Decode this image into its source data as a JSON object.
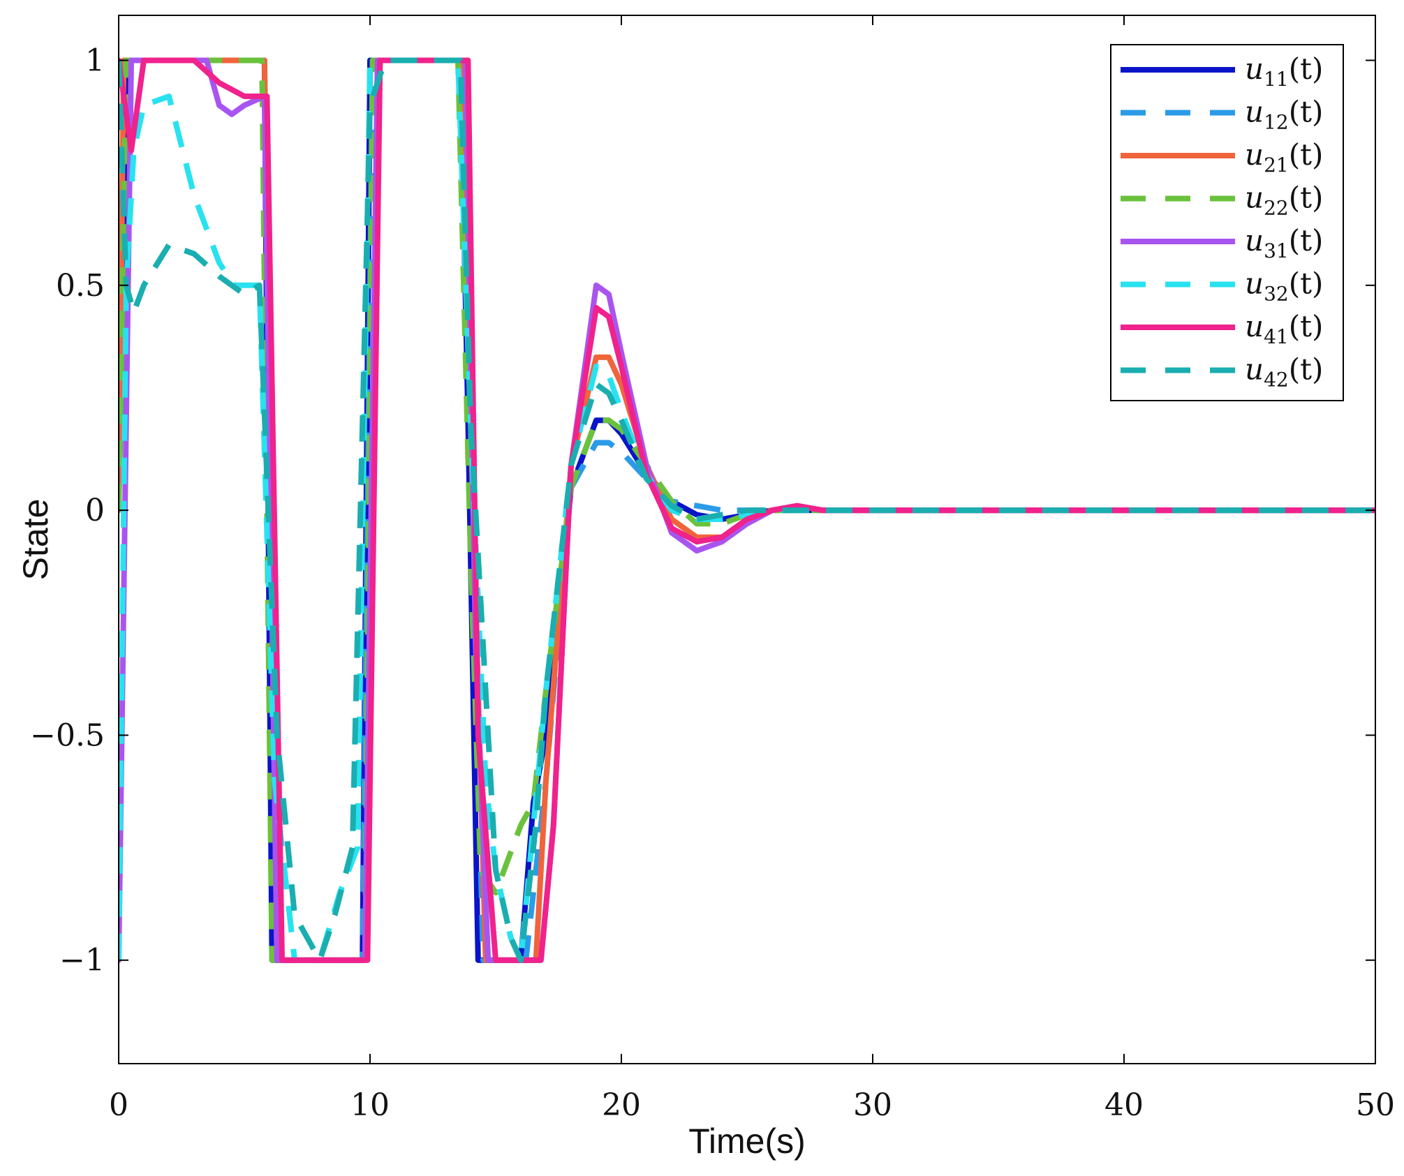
{
  "chart_data": {
    "type": "line",
    "title": "",
    "xlabel": "Time(s)",
    "ylabel": "State",
    "xlim": [
      0,
      50
    ],
    "ylim": [
      -1.23,
      1.1
    ],
    "xticks": [
      0,
      10,
      20,
      30,
      40,
      50
    ],
    "xtick_labels": [
      "0",
      "10",
      "20",
      "30",
      "40",
      "50"
    ],
    "yticks": [
      -1,
      -0.5,
      0,
      0.5,
      1
    ],
    "ytick_labels": [
      "−1",
      "−0.5",
      "0",
      "0.5",
      "1"
    ],
    "grid": false,
    "legend_position": "top-right",
    "series": [
      {
        "name": "u11(t)",
        "label_base": "u",
        "label_sub": "11",
        "label_arg": "(t)",
        "color": "#0a14c8",
        "dash": "solid",
        "x": [
          0,
          0.3,
          1,
          2,
          3,
          4,
          5,
          5.8,
          6.1,
          7,
          8,
          9,
          9.7,
          10,
          11,
          12,
          13,
          13.6,
          13.9,
          14.3,
          15,
          15.6,
          16,
          16.5,
          17,
          18,
          19,
          19.5,
          20,
          21,
          22,
          23,
          24,
          25,
          26,
          27,
          28,
          30,
          35,
          40,
          45,
          50
        ],
        "y": [
          0,
          1,
          1,
          1,
          1,
          1,
          1,
          1,
          -1,
          -1,
          -1,
          -1,
          -1,
          1,
          1,
          1,
          1,
          1,
          0.2,
          -1,
          -1,
          -1,
          -1,
          -0.65,
          -0.5,
          0.05,
          0.2,
          0.2,
          0.17,
          0.08,
          0.02,
          -0.01,
          -0.02,
          -0.01,
          0,
          0,
          0,
          0,
          0,
          0,
          0,
          0
        ]
      },
      {
        "name": "u12(t)",
        "label_base": "u",
        "label_sub": "12",
        "label_arg": "(t)",
        "color": "#2b9be8",
        "dash": "dashed",
        "x": [
          0,
          0.4,
          1,
          2,
          3,
          4,
          5,
          5.8,
          6.1,
          7,
          8,
          9,
          9.7,
          10.1,
          11,
          12,
          13,
          13.6,
          14,
          14.5,
          15,
          15.7,
          16.2,
          17,
          18,
          19,
          19.5,
          20,
          21,
          22,
          23,
          24,
          25,
          26,
          28,
          30,
          35,
          40,
          45,
          50
        ],
        "y": [
          0,
          1,
          1,
          1,
          1,
          1,
          1,
          1,
          -1,
          -1,
          -1,
          -1,
          -1,
          1,
          1,
          1,
          1,
          1,
          0.1,
          -1,
          -1,
          -1,
          -1,
          -0.6,
          0.05,
          0.15,
          0.15,
          0.13,
          0.07,
          0.02,
          0.01,
          0,
          0,
          0,
          0,
          0,
          0,
          0,
          0,
          0
        ]
      },
      {
        "name": "u21(t)",
        "label_base": "u",
        "label_sub": "21",
        "label_arg": "(t)",
        "color": "#f0643c",
        "dash": "solid",
        "x": [
          0,
          0.2,
          1,
          2,
          3,
          4,
          5,
          5.8,
          6.3,
          7,
          8,
          9,
          9.8,
          10.3,
          11,
          12,
          13,
          13.6,
          14,
          14.6,
          15,
          16,
          16.6,
          17,
          18,
          19,
          19.5,
          20,
          21,
          22,
          23,
          24,
          25,
          26,
          27,
          28,
          30,
          35,
          40,
          45,
          50
        ],
        "y": [
          0,
          1,
          1,
          1,
          1,
          1,
          1,
          1,
          -1,
          -1,
          -1,
          -1,
          -1,
          1,
          1,
          1,
          1,
          1,
          0.2,
          -1,
          -1,
          -1,
          -1,
          -0.6,
          0.1,
          0.34,
          0.34,
          0.28,
          0.1,
          -0.02,
          -0.06,
          -0.06,
          -0.03,
          0,
          0.01,
          0,
          0,
          0,
          0,
          0,
          0
        ]
      },
      {
        "name": "u22(t)",
        "label_base": "u",
        "label_sub": "22",
        "label_arg": "(t)",
        "color": "#6ac23c",
        "dash": "dashed",
        "x": [
          0,
          0.3,
          1,
          2,
          3,
          4,
          5,
          5.7,
          6.1,
          7,
          8,
          9,
          9.8,
          10.1,
          11,
          12,
          13,
          13.5,
          14,
          14.4,
          15,
          16,
          16.5,
          17,
          18,
          19,
          19.5,
          20,
          21,
          22,
          23,
          24,
          25,
          26,
          28,
          30,
          35,
          40,
          45,
          50
        ],
        "y": [
          0,
          1,
          1,
          1,
          1,
          1,
          1,
          1,
          -1,
          -1,
          -1,
          -1,
          -1,
          1,
          1,
          1,
          1,
          1,
          -0.1,
          -0.8,
          -0.85,
          -0.7,
          -0.65,
          -0.4,
          0.05,
          0.2,
          0.2,
          0.18,
          0.1,
          0.02,
          -0.03,
          -0.03,
          -0.01,
          0,
          0,
          0,
          0,
          0,
          0,
          0
        ]
      },
      {
        "name": "u31(t)",
        "label_base": "u",
        "label_sub": "31",
        "label_arg": "(t)",
        "color": "#a855f0",
        "dash": "solid",
        "x": [
          0,
          0.5,
          1,
          2,
          3,
          3.5,
          4,
          4.5,
          5,
          5.8,
          6.3,
          7,
          8,
          9,
          9.8,
          10.3,
          11,
          12,
          13,
          13.8,
          14.2,
          14.7,
          15,
          16,
          16.8,
          17.3,
          18,
          19,
          19.5,
          20,
          21,
          22,
          23,
          24,
          25,
          26,
          27,
          28,
          30,
          35,
          40,
          45,
          50
        ],
        "y": [
          -1,
          1,
          1,
          1,
          1,
          1,
          0.9,
          0.88,
          0.9,
          0.92,
          -1,
          -1,
          -1,
          -1,
          -1,
          1,
          1,
          1,
          1,
          1,
          -0.3,
          -1,
          -1,
          -1,
          -1,
          -0.7,
          0.1,
          0.5,
          0.48,
          0.35,
          0.1,
          -0.05,
          -0.09,
          -0.07,
          -0.03,
          0,
          0.01,
          0,
          0,
          0,
          0,
          0,
          0
        ]
      },
      {
        "name": "u32(t)",
        "label_base": "u",
        "label_sub": "32",
        "label_arg": "(t)",
        "color": "#28e2f0",
        "dash": "dashed",
        "x": [
          0,
          0.3,
          0.6,
          1,
          2,
          3,
          4,
          4.6,
          5,
          5.6,
          6.2,
          7,
          8,
          8.8,
          9.5,
          10,
          11,
          12,
          13,
          13.5,
          14,
          14.6,
          15,
          15.6,
          16,
          16.5,
          17,
          18,
          19,
          19.5,
          20,
          21,
          22,
          23,
          24,
          25,
          26,
          28,
          30,
          35,
          40,
          45,
          50
        ],
        "y": [
          -1,
          0.5,
          0.8,
          0.9,
          0.92,
          0.7,
          0.55,
          0.5,
          0.5,
          0.5,
          -0.6,
          -1,
          -1,
          -0.85,
          -0.75,
          1,
          1,
          1,
          1,
          1,
          0.2,
          -0.6,
          -0.8,
          -0.95,
          -1,
          -0.7,
          -0.4,
          0.1,
          0.32,
          0.3,
          0.22,
          0.08,
          0.0,
          -0.02,
          -0.02,
          -0.01,
          0,
          0,
          0,
          0,
          0,
          0,
          0
        ]
      },
      {
        "name": "u41(t)",
        "label_base": "u",
        "label_sub": "41",
        "label_arg": "(t)",
        "color": "#f0228c",
        "dash": "solid",
        "x": [
          0,
          0.5,
          1,
          2,
          3,
          4,
          5,
          5.9,
          6.5,
          7,
          8,
          9,
          9.9,
          10.4,
          11,
          12,
          13,
          13.9,
          14.3,
          15,
          16,
          16.8,
          17.3,
          18,
          19,
          19.5,
          20,
          21,
          22,
          23,
          24,
          25,
          26,
          27,
          28,
          30,
          35,
          40,
          45,
          50
        ],
        "y": [
          1,
          0.8,
          1,
          1,
          1,
          0.95,
          0.92,
          0.92,
          -1,
          -1,
          -1,
          -1,
          -1,
          1,
          1,
          1,
          1,
          1,
          -0.5,
          -1,
          -1,
          -1,
          -0.7,
          0.1,
          0.45,
          0.43,
          0.32,
          0.08,
          -0.04,
          -0.07,
          -0.06,
          -0.02,
          0,
          0.01,
          0,
          0,
          0,
          0,
          0,
          0
        ]
      },
      {
        "name": "u42(t)",
        "label_base": "u",
        "label_sub": "42",
        "label_arg": "(t)",
        "color": "#1aaeb0",
        "dash": "dashed",
        "x": [
          0,
          0.3,
          0.6,
          1,
          2,
          3,
          4,
          5,
          5.6,
          6.3,
          7,
          8,
          8.6,
          9.3,
          10,
          10.6,
          11,
          12,
          13,
          13.6,
          14,
          14.6,
          15,
          15.6,
          16,
          16.6,
          17,
          18,
          19,
          19.5,
          20,
          21,
          22,
          23,
          24,
          25,
          26,
          28,
          30,
          35,
          40,
          45,
          50
        ],
        "y": [
          1,
          0.5,
          0.44,
          0.5,
          0.59,
          0.57,
          0.52,
          0.48,
          0.5,
          -0.5,
          -0.9,
          -1,
          -0.9,
          -0.75,
          0.9,
          1,
          1,
          1,
          1,
          1,
          0.2,
          -0.4,
          -0.8,
          -0.95,
          -1,
          -0.7,
          -0.4,
          0.1,
          0.28,
          0.26,
          0.2,
          0.07,
          0.01,
          -0.02,
          -0.01,
          0,
          0,
          0,
          0,
          0,
          0,
          0,
          0
        ]
      }
    ]
  }
}
